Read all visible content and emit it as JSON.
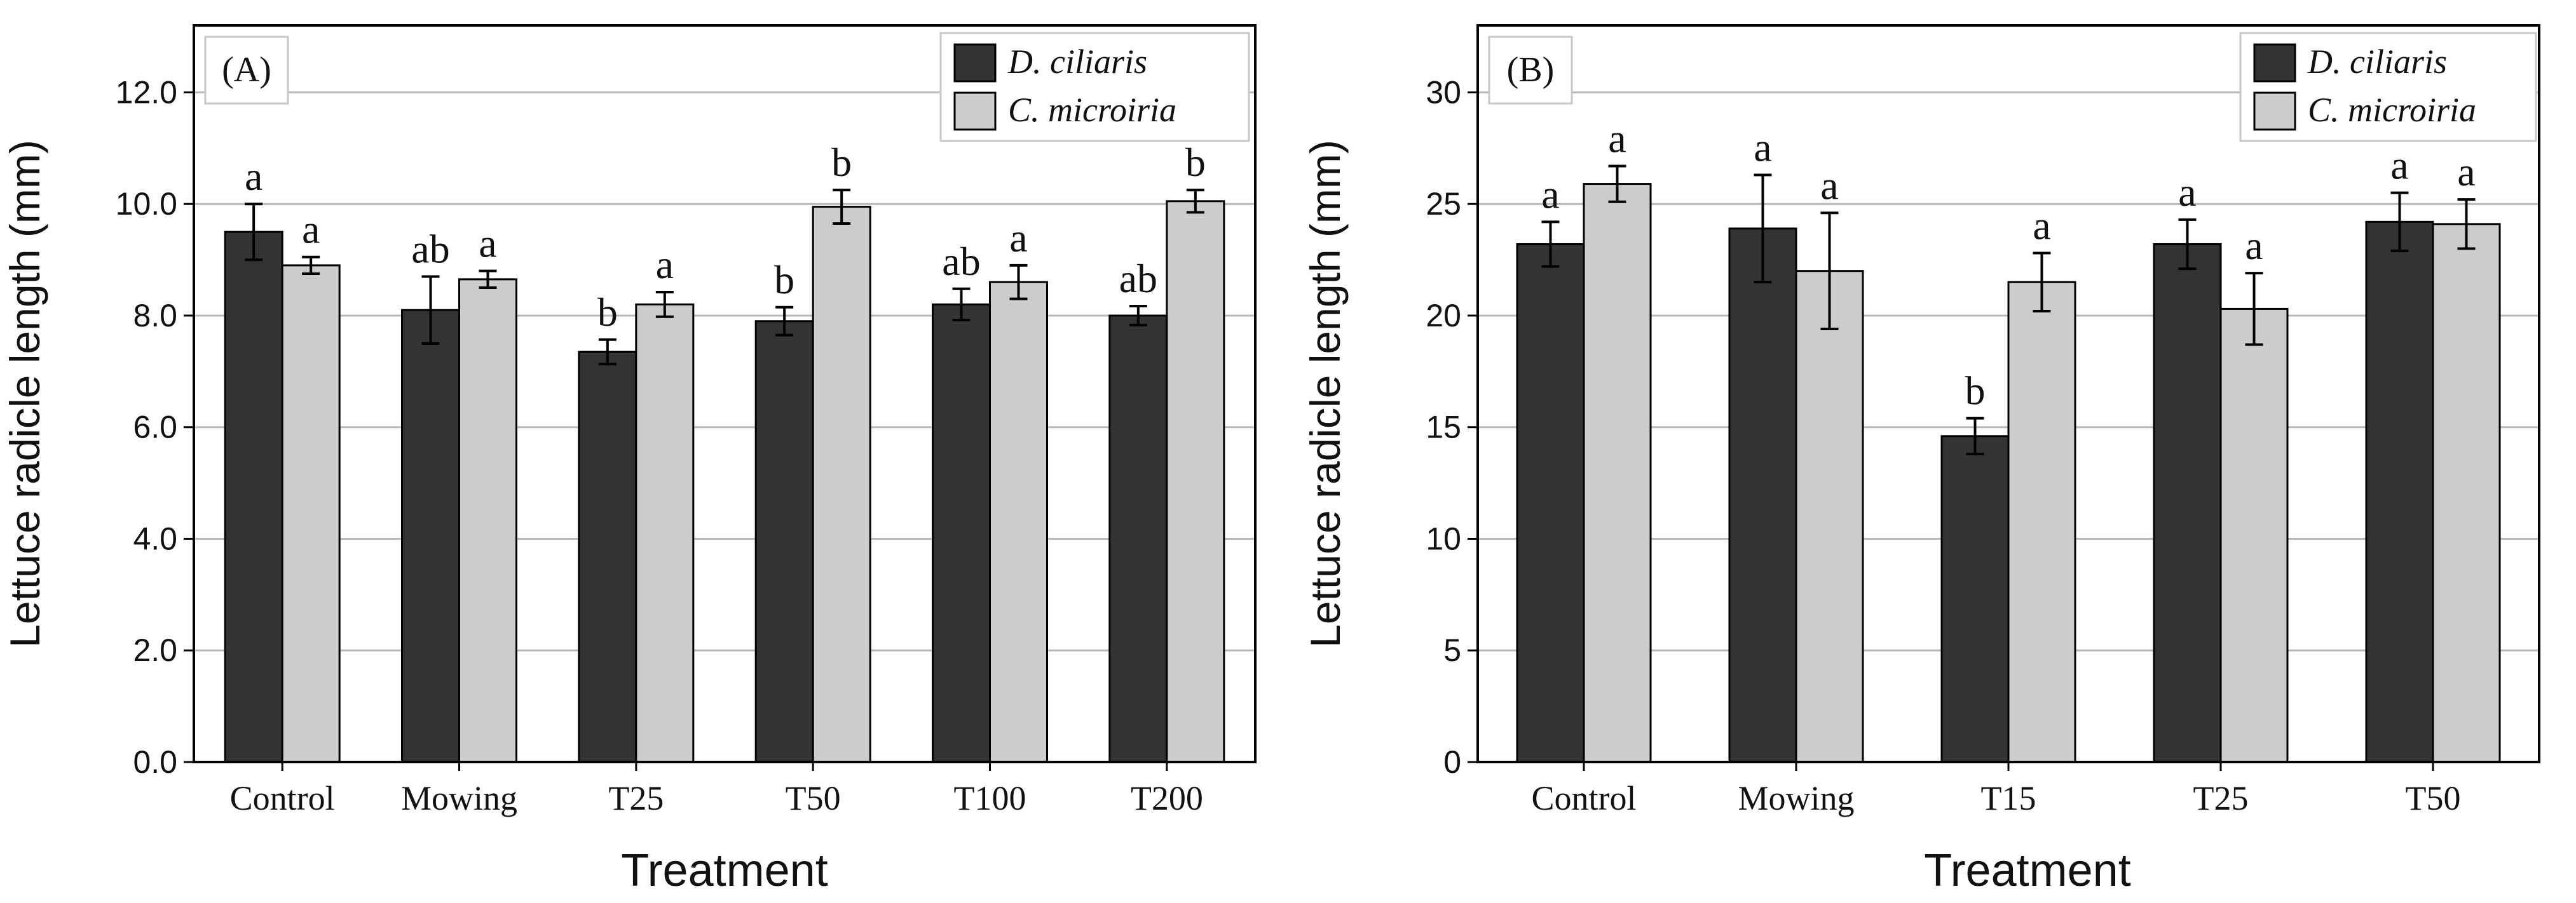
{
  "colors": {
    "dark_bar": "#333333",
    "light_bar": "#cccccc",
    "grid": "#b8b8b8",
    "axis": "#000000",
    "text": "#111111"
  },
  "chart_data": [
    {
      "type": "bar",
      "panel_label": "(A)",
      "xlabel": "Treatment",
      "ylabel": "Lettuce radicle length (mm)",
      "ylim": [
        0,
        13.2
      ],
      "yticks": [
        0,
        2,
        4,
        6,
        8,
        10,
        12
      ],
      "ytick_labels": [
        "0.0",
        "2.0",
        "4.0",
        "6.0",
        "8.0",
        "10.0",
        "12.0"
      ],
      "grid": true,
      "legend_position": "top-right",
      "categories": [
        "Control",
        "Mowing",
        "T25",
        "T50",
        "T100",
        "T200"
      ],
      "series": [
        {
          "name": "D. ciliaris",
          "color": "#333333",
          "values": [
            9.5,
            8.1,
            7.35,
            7.9,
            8.2,
            8.0
          ],
          "errors": [
            0.5,
            0.6,
            0.22,
            0.25,
            0.28,
            0.17
          ],
          "letters": [
            "a",
            "ab",
            "b",
            "b",
            "ab",
            "ab"
          ]
        },
        {
          "name": "C. microiria",
          "color": "#cccccc",
          "values": [
            8.9,
            8.65,
            8.2,
            9.95,
            8.6,
            10.05
          ],
          "errors": [
            0.15,
            0.15,
            0.22,
            0.3,
            0.3,
            0.2
          ],
          "letters": [
            "a",
            "a",
            "a",
            "b",
            "a",
            "b"
          ]
        }
      ]
    },
    {
      "type": "bar",
      "panel_label": "(B)",
      "xlabel": "Treatment",
      "ylabel": "Lettuce radicle length (mm)",
      "ylim": [
        0,
        33
      ],
      "yticks": [
        0,
        5,
        10,
        15,
        20,
        25,
        30
      ],
      "ytick_labels": [
        "0",
        "5",
        "10",
        "15",
        "20",
        "25",
        "30"
      ],
      "grid": true,
      "legend_position": "top-right",
      "categories": [
        "Control",
        "Mowing",
        "T15",
        "T25",
        "T50"
      ],
      "series": [
        {
          "name": "D. ciliaris",
          "color": "#333333",
          "values": [
            23.2,
            23.9,
            14.6,
            23.2,
            24.2
          ],
          "errors": [
            1.0,
            2.4,
            0.8,
            1.1,
            1.3
          ],
          "letters": [
            "a",
            "a",
            "b",
            "a",
            "a"
          ]
        },
        {
          "name": "C. microiria",
          "color": "#cccccc",
          "values": [
            25.9,
            22.0,
            21.5,
            20.3,
            24.1
          ],
          "errors": [
            0.8,
            2.6,
            1.3,
            1.6,
            1.1
          ],
          "letters": [
            "a",
            "a",
            "a",
            "a",
            "a"
          ]
        }
      ]
    }
  ]
}
